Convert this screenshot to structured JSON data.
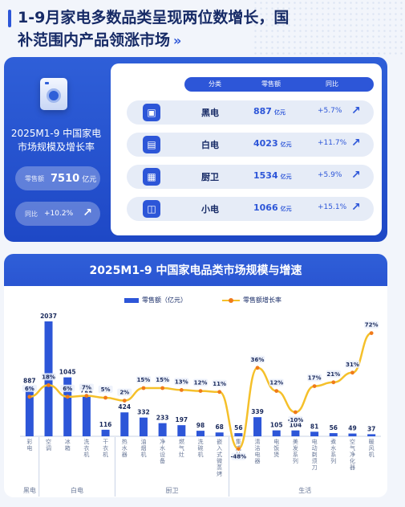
{
  "header": {
    "title": "1-9月家电多数品类呈现两位数增长，国补范围内产品领涨市场"
  },
  "summary": {
    "title_line1": "2025M1-9 中国家电",
    "title_line2": "市场规模及增长率",
    "sales_label": "零售额",
    "sales_value": "7510",
    "sales_unit": "亿元",
    "growth_label": "同比",
    "growth_value": "+10.2%"
  },
  "table": {
    "headers": [
      "分类",
      "零售额",
      "同比"
    ],
    "rows": [
      {
        "icon": "tv-icon",
        "glyph": "▣",
        "category": "黑电",
        "amount": "887",
        "unit": "亿元",
        "growth": "+5.7%"
      },
      {
        "icon": "fridge-icon",
        "glyph": "▤",
        "category": "白电",
        "amount": "4023",
        "unit": "亿元",
        "growth": "+11.7%"
      },
      {
        "icon": "stove-icon",
        "glyph": "▦",
        "category": "厨卫",
        "amount": "1534",
        "unit": "亿元",
        "growth": "+5.9%"
      },
      {
        "icon": "appliance-icon",
        "glyph": "◫",
        "category": "小电",
        "amount": "1066",
        "unit": "亿元",
        "growth": "+15.1%"
      }
    ]
  },
  "chart_data": {
    "type": "bar",
    "title": "2025M1-9 中国家电品类市场规模与增速",
    "categories": [
      "彩电",
      "空调",
      "冰箱",
      "洗衣机",
      "干衣机",
      "热水器",
      "油烟机",
      "净水设备",
      "燃气灶",
      "洗碗机",
      "嵌入式微蒸烤",
      "集成灶",
      "清洁电器",
      "电饭煲",
      "美发系列",
      "电动剃须刀",
      "煮水系列",
      "空气净化器",
      "暖风机"
    ],
    "groups": [
      {
        "name": "黑电",
        "count": 1
      },
      {
        "name": "白电",
        "count": 4
      },
      {
        "name": "厨卫",
        "count": 6
      },
      {
        "name": "生活",
        "count": 8
      }
    ],
    "series": [
      {
        "name": "零售额（亿元）",
        "type": "bar",
        "color": "#2d56d8",
        "values": [
          887,
          2037,
          1045,
          722,
          116,
          424,
          332,
          233,
          197,
          98,
          68,
          56,
          339,
          105,
          104,
          81,
          56,
          49,
          37
        ]
      },
      {
        "name": "零售额增长率",
        "type": "line",
        "color": "#f5c02a",
        "values": [
          6,
          18,
          6,
          7,
          5,
          2,
          15,
          15,
          13,
          12,
          11,
          -48,
          36,
          12,
          -10,
          17,
          21,
          31,
          72
        ]
      }
    ],
    "bar_labels": [
      "887",
      "2037",
      "1045",
      "722",
      "116",
      "424",
      "332",
      "233",
      "197",
      "98",
      "68",
      "56",
      "339",
      "105",
      "104",
      "81",
      "56",
      "49",
      "37"
    ],
    "line_labels": [
      "6%",
      "18%",
      "6%",
      "7%",
      "5%",
      "2%",
      "15%",
      "15%",
      "13%",
      "12%",
      "11%",
      "-48%",
      "36%",
      "12%",
      "-10%",
      "17%",
      "21%",
      "31%",
      "72%"
    ],
    "legend_position": "top-center"
  }
}
